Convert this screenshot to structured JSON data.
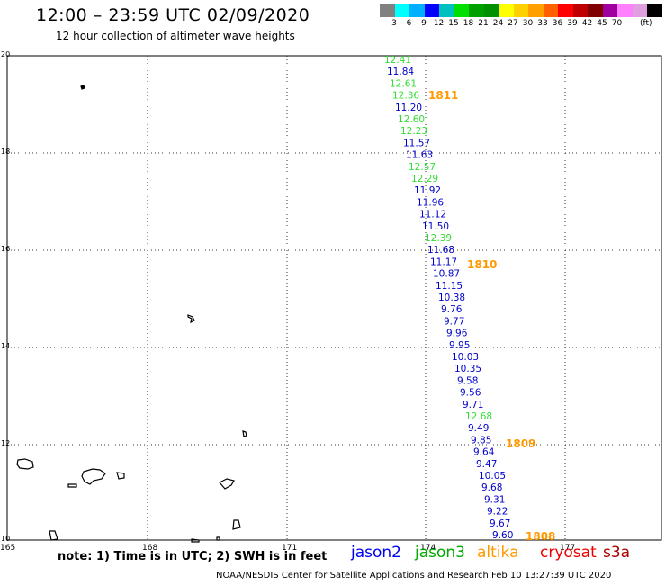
{
  "header": {
    "title": "12:00  –  23:59 UTC 02/09/2020",
    "subtitle": "12 hour collection of altimeter wave heights"
  },
  "legend": {
    "colors": [
      "#808080",
      "#00ffff",
      "#00b0ff",
      "#0000ff",
      "#00c0c0",
      "#00e000",
      "#00a000",
      "#009000",
      "#ffff00",
      "#ffd000",
      "#ffa000",
      "#ff6000",
      "#ff0000",
      "#c00000",
      "#800000",
      "#a000a0",
      "#ff80ff",
      "#e0a0e0",
      "#000000"
    ],
    "ticks": [
      "3",
      "6",
      "9",
      "12",
      "15",
      "18",
      "21",
      "24",
      "27",
      "30",
      "33",
      "36",
      "39",
      "42",
      "45",
      "70"
    ],
    "unit": "(ft)"
  },
  "axes": {
    "x_ticks": [
      "165",
      "168",
      "171",
      "174",
      "177"
    ],
    "y_ticks": [
      "20",
      "18",
      "16",
      "14",
      "12",
      "10"
    ]
  },
  "track_labels": [
    {
      "text": "1811",
      "color": "#ff9900"
    },
    {
      "text": "1810",
      "color": "#ff9900"
    },
    {
      "text": "1809",
      "color": "#ff9900"
    },
    {
      "text": "1808",
      "color": "#ff9900"
    }
  ],
  "observations": [
    {
      "v": "12.41",
      "c": "#33dd33"
    },
    {
      "v": "11.84",
      "c": "#0000cc"
    },
    {
      "v": "12.61",
      "c": "#33dd33"
    },
    {
      "v": "12.36",
      "c": "#33dd33"
    },
    {
      "v": "11.20",
      "c": "#0000cc"
    },
    {
      "v": "12.60",
      "c": "#33dd33"
    },
    {
      "v": "12.23",
      "c": "#33dd33"
    },
    {
      "v": "11.57",
      "c": "#0000cc"
    },
    {
      "v": "11.63",
      "c": "#0000cc"
    },
    {
      "v": "12.57",
      "c": "#33dd33"
    },
    {
      "v": "12.29",
      "c": "#33dd33"
    },
    {
      "v": "11.92",
      "c": "#0000cc"
    },
    {
      "v": "11.96",
      "c": "#0000cc"
    },
    {
      "v": "11.12",
      "c": "#0000cc"
    },
    {
      "v": "11.50",
      "c": "#0000cc"
    },
    {
      "v": "12.39",
      "c": "#33dd33"
    },
    {
      "v": "11.68",
      "c": "#0000cc"
    },
    {
      "v": "11.17",
      "c": "#0000cc"
    },
    {
      "v": "10.87",
      "c": "#0000cc"
    },
    {
      "v": "11.15",
      "c": "#0000cc"
    },
    {
      "v": "10.38",
      "c": "#0000cc"
    },
    {
      "v": "9.76",
      "c": "#0000cc"
    },
    {
      "v": "9.77",
      "c": "#0000cc"
    },
    {
      "v": "9.96",
      "c": "#0000cc"
    },
    {
      "v": "9.95",
      "c": "#0000cc"
    },
    {
      "v": "10.03",
      "c": "#0000cc"
    },
    {
      "v": "10.35",
      "c": "#0000cc"
    },
    {
      "v": "9.58",
      "c": "#0000cc"
    },
    {
      "v": "9.56",
      "c": "#0000cc"
    },
    {
      "v": "9.71",
      "c": "#0000cc"
    },
    {
      "v": "12.68",
      "c": "#33dd33"
    },
    {
      "v": "9.49",
      "c": "#0000cc"
    },
    {
      "v": "9.85",
      "c": "#0000cc"
    },
    {
      "v": "9.64",
      "c": "#0000cc"
    },
    {
      "v": "9.47",
      "c": "#0000cc"
    },
    {
      "v": "10.05",
      "c": "#0000cc"
    },
    {
      "v": "9.68",
      "c": "#0000cc"
    },
    {
      "v": "9.31",
      "c": "#0000cc"
    },
    {
      "v": "9.22",
      "c": "#0000cc"
    },
    {
      "v": "9.67",
      "c": "#0000cc"
    },
    {
      "v": "9.60",
      "c": "#0000cc"
    }
  ],
  "footer": {
    "note": "note:  1) Time is in UTC;  2) SWH is in feet",
    "satellites": [
      {
        "name": "jason2",
        "color": "#0000ee"
      },
      {
        "name": "jason3",
        "color": "#00aa00"
      },
      {
        "name": "altika",
        "color": "#ff9900"
      },
      {
        "name": "cryosat",
        "color": "#ee0000"
      },
      {
        "name": "s3a",
        "color": "#aa0000"
      }
    ],
    "credit": "NOAA/NESDIS Center for Satellite Applications and Research     Feb 10 13:27:39 UTC 2020"
  }
}
